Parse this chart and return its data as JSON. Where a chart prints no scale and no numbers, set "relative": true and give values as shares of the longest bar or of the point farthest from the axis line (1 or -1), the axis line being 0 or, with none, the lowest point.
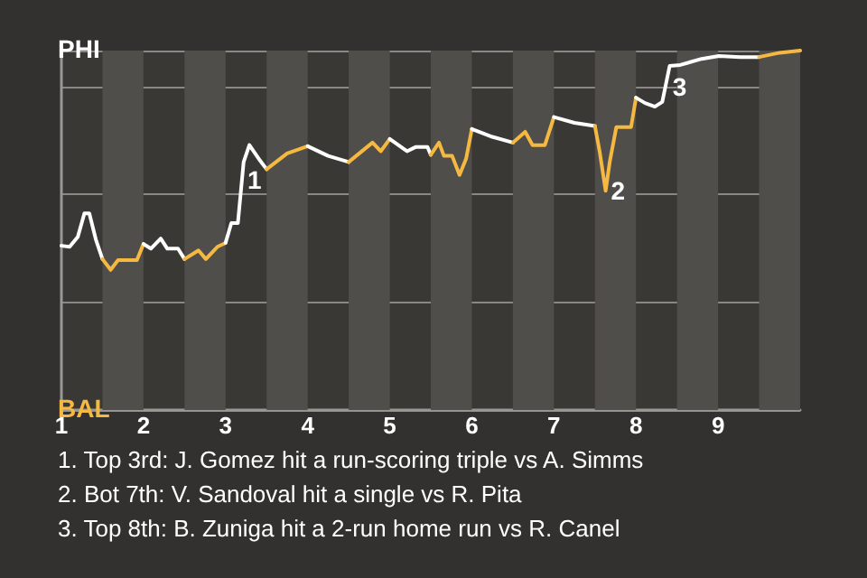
{
  "chart_data": {
    "type": "line",
    "relative": true,
    "xlim": [
      1,
      10
    ],
    "xticks": [
      1,
      2,
      3,
      4,
      5,
      6,
      7,
      8,
      9
    ],
    "grid": "y",
    "marker": "none",
    "line_style": "solid",
    "series": [
      {
        "color": "#ffffff",
        "x": [
          1,
          1.1,
          1.2,
          1.28,
          1.34,
          1.42,
          1.5
        ],
        "values": [
          0.457,
          0.454,
          0.482,
          0.547,
          0.547,
          0.474,
          0.42
        ]
      },
      {
        "color": "#f5b942",
        "x": [
          1.5,
          1.6,
          1.69,
          1.92,
          2
        ],
        "values": [
          0.42,
          0.39,
          0.417,
          0.417,
          0.462
        ]
      },
      {
        "color": "#ffffff",
        "x": [
          2,
          2.09,
          2.21,
          2.29,
          2.42,
          2.5
        ],
        "values": [
          0.462,
          0.449,
          0.477,
          0.449,
          0.449,
          0.42
        ]
      },
      {
        "color": "#f5b942",
        "x": [
          2.5,
          2.67,
          2.76,
          2.9,
          3
        ],
        "values": [
          0.42,
          0.444,
          0.42,
          0.454,
          0.465
        ]
      },
      {
        "color": "#ffffff",
        "x": [
          3,
          3.07,
          3.15,
          3.22,
          3.29,
          3.42,
          3.5
        ],
        "values": [
          0.465,
          0.52,
          0.52,
          0.69,
          0.737,
          0.694,
          0.67
        ]
      },
      {
        "color": "#f5b942",
        "x": [
          3.5,
          3.75,
          4
        ],
        "values": [
          0.67,
          0.714,
          0.734
        ]
      },
      {
        "color": "#ffffff",
        "x": [
          4,
          4.25,
          4.5
        ],
        "values": [
          0.734,
          0.707,
          0.69
        ]
      },
      {
        "color": "#f5b942",
        "x": [
          4.5,
          4.79,
          4.89,
          5
        ],
        "values": [
          0.69,
          0.744,
          0.72,
          0.754
        ]
      },
      {
        "color": "#ffffff",
        "x": [
          5,
          5.21,
          5.32,
          5.46,
          5.5
        ],
        "values": [
          0.754,
          0.72,
          0.732,
          0.732,
          0.71
        ]
      },
      {
        "color": "#f5b942",
        "x": [
          5.5,
          5.6,
          5.66,
          5.76,
          5.85,
          5.93,
          6
        ],
        "values": [
          0.71,
          0.744,
          0.707,
          0.707,
          0.654,
          0.699,
          0.782
        ]
      },
      {
        "color": "#ffffff",
        "x": [
          6,
          6.25,
          6.5
        ],
        "values": [
          0.782,
          0.76,
          0.744
        ]
      },
      {
        "color": "#f5b942",
        "x": [
          6.5,
          6.65,
          6.74,
          6.89,
          7
        ],
        "values": [
          0.744,
          0.774,
          0.737,
          0.737,
          0.815
        ]
      },
      {
        "color": "#ffffff",
        "x": [
          7,
          7.25,
          7.5
        ],
        "values": [
          0.815,
          0.799,
          0.79
        ]
      },
      {
        "color": "#f5b942",
        "x": [
          7.5,
          7.56,
          7.63,
          7.68,
          7.76,
          7.94,
          8
        ],
        "values": [
          0.79,
          0.715,
          0.61,
          0.69,
          0.787,
          0.787,
          0.869
        ]
      },
      {
        "color": "#ffffff",
        "x": [
          8,
          8.11,
          8.23,
          8.32,
          8.41,
          8.54,
          8.8,
          9.01,
          9.27,
          9.5
        ],
        "values": [
          0.869,
          0.854,
          0.844,
          0.857,
          0.957,
          0.96,
          0.977,
          0.985,
          0.982,
          0.982
        ]
      },
      {
        "color": "#f5b942",
        "x": [
          9.5,
          9.75,
          10
        ],
        "values": [
          0.982,
          0.994,
          1
        ]
      }
    ],
    "bands": [
      {
        "axis": "x",
        "from": 1.5,
        "to": 2,
        "color": "#504e4b"
      },
      {
        "axis": "x",
        "from": 2.5,
        "to": 3,
        "color": "#504e4b"
      },
      {
        "axis": "x",
        "from": 3.5,
        "to": 4,
        "color": "#504e4b"
      },
      {
        "axis": "x",
        "from": 4.5,
        "to": 5,
        "color": "#504e4b"
      },
      {
        "axis": "x",
        "from": 5.5,
        "to": 6,
        "color": "#504e4b"
      },
      {
        "axis": "x",
        "from": 6.5,
        "to": 7,
        "color": "#504e4b"
      },
      {
        "axis": "x",
        "from": 7.5,
        "to": 8,
        "color": "#504e4b"
      },
      {
        "axis": "x",
        "from": 8.5,
        "to": 9,
        "color": "#504e4b"
      },
      {
        "axis": "x",
        "from": 9.5,
        "to": 10,
        "color": "#504e4b"
      }
    ],
    "annotations": [
      "PHI",
      "BAL",
      {
        "text": "1",
        "x": 3.2,
        "y": 0.64
      },
      {
        "text": "2",
        "x": 7.63,
        "y": 0.61
      },
      {
        "text": "3",
        "x": 8.38,
        "y": 0.9
      },
      "1. Top 3rd: J. Gomez hit a run-scoring triple vs A. Simms",
      "2. Bot 7th: V. Sandoval hit a single vs R. Pita",
      "3. Top 8th: B. Zuniga hit a 2-run home run vs R. Canel"
    ]
  }
}
